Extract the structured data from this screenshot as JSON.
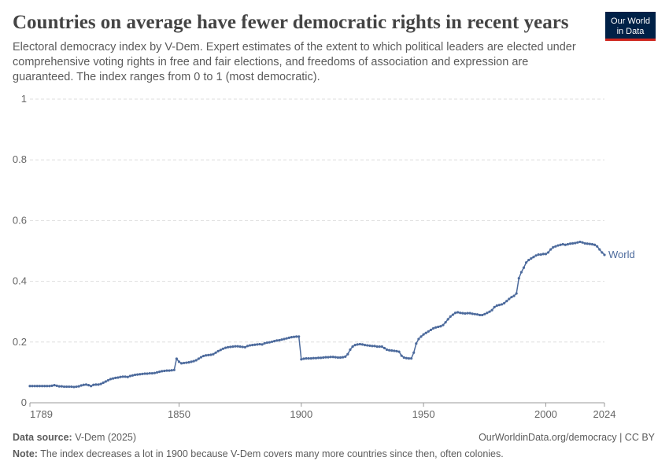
{
  "chart_data": {
    "type": "line",
    "title": "Countries on average have fewer democratic rights in recent years",
    "subtitle": [
      "Electoral democracy index by V-Dem. Expert estimates of the extent to which political leaders are elected under",
      "comprehensive voting rights in free and fair elections, and freedoms of association and expression are",
      "guaranteed. The index ranges from 0 to 1 (most democratic)."
    ],
    "logo": [
      "Our World",
      "in Data"
    ],
    "x": [
      1789,
      1790,
      1791,
      1792,
      1793,
      1794,
      1795,
      1796,
      1797,
      1798,
      1799,
      1800,
      1801,
      1802,
      1803,
      1804,
      1805,
      1806,
      1807,
      1808,
      1809,
      1810,
      1811,
      1812,
      1813,
      1814,
      1815,
      1816,
      1817,
      1818,
      1819,
      1820,
      1821,
      1822,
      1823,
      1824,
      1825,
      1826,
      1827,
      1828,
      1829,
      1830,
      1831,
      1832,
      1833,
      1834,
      1835,
      1836,
      1837,
      1838,
      1839,
      1840,
      1841,
      1842,
      1843,
      1844,
      1845,
      1846,
      1847,
      1848,
      1849,
      1850,
      1851,
      1852,
      1853,
      1854,
      1855,
      1856,
      1857,
      1858,
      1859,
      1860,
      1861,
      1862,
      1863,
      1864,
      1865,
      1866,
      1867,
      1868,
      1869,
      1870,
      1871,
      1872,
      1873,
      1874,
      1875,
      1876,
      1877,
      1878,
      1879,
      1880,
      1881,
      1882,
      1883,
      1884,
      1885,
      1886,
      1887,
      1888,
      1889,
      1890,
      1891,
      1892,
      1893,
      1894,
      1895,
      1896,
      1897,
      1898,
      1899,
      1900,
      1901,
      1902,
      1903,
      1904,
      1905,
      1906,
      1907,
      1908,
      1909,
      1910,
      1911,
      1912,
      1913,
      1914,
      1915,
      1916,
      1917,
      1918,
      1919,
      1920,
      1921,
      1922,
      1923,
      1924,
      1925,
      1926,
      1927,
      1928,
      1929,
      1930,
      1931,
      1932,
      1933,
      1934,
      1935,
      1936,
      1937,
      1938,
      1939,
      1940,
      1941,
      1942,
      1943,
      1944,
      1945,
      1946,
      1947,
      1948,
      1949,
      1950,
      1951,
      1952,
      1953,
      1954,
      1955,
      1956,
      1957,
      1958,
      1959,
      1960,
      1961,
      1962,
      1963,
      1964,
      1965,
      1966,
      1967,
      1968,
      1969,
      1970,
      1971,
      1972,
      1973,
      1974,
      1975,
      1976,
      1977,
      1978,
      1979,
      1980,
      1981,
      1982,
      1983,
      1984,
      1985,
      1986,
      1987,
      1988,
      1989,
      1990,
      1991,
      1992,
      1993,
      1994,
      1995,
      1996,
      1997,
      1998,
      1999,
      2000,
      2001,
      2002,
      2003,
      2004,
      2005,
      2006,
      2007,
      2008,
      2009,
      2010,
      2011,
      2012,
      2013,
      2014,
      2015,
      2016,
      2017,
      2018,
      2019,
      2020,
      2021,
      2022,
      2023,
      2024
    ],
    "series": [
      {
        "name": "World",
        "color": "#4c6a9c",
        "values": [
          0.055,
          0.055,
          0.055,
          0.055,
          0.055,
          0.055,
          0.055,
          0.055,
          0.055,
          0.056,
          0.058,
          0.056,
          0.054,
          0.054,
          0.053,
          0.053,
          0.053,
          0.053,
          0.052,
          0.053,
          0.054,
          0.057,
          0.059,
          0.06,
          0.058,
          0.055,
          0.059,
          0.06,
          0.06,
          0.062,
          0.066,
          0.07,
          0.074,
          0.078,
          0.08,
          0.082,
          0.083,
          0.085,
          0.086,
          0.086,
          0.085,
          0.088,
          0.09,
          0.092,
          0.093,
          0.094,
          0.095,
          0.096,
          0.096,
          0.097,
          0.097,
          0.098,
          0.1,
          0.102,
          0.104,
          0.105,
          0.106,
          0.106,
          0.107,
          0.108,
          0.145,
          0.135,
          0.13,
          0.131,
          0.132,
          0.133,
          0.135,
          0.137,
          0.14,
          0.145,
          0.15,
          0.154,
          0.156,
          0.157,
          0.158,
          0.16,
          0.165,
          0.17,
          0.174,
          0.178,
          0.181,
          0.183,
          0.184,
          0.185,
          0.186,
          0.186,
          0.185,
          0.184,
          0.183,
          0.187,
          0.189,
          0.19,
          0.191,
          0.192,
          0.193,
          0.192,
          0.196,
          0.198,
          0.199,
          0.201,
          0.203,
          0.205,
          0.206,
          0.208,
          0.21,
          0.212,
          0.214,
          0.216,
          0.217,
          0.218,
          0.218,
          0.143,
          0.145,
          0.146,
          0.146,
          0.146,
          0.147,
          0.147,
          0.148,
          0.148,
          0.149,
          0.15,
          0.15,
          0.151,
          0.151,
          0.15,
          0.149,
          0.149,
          0.15,
          0.152,
          0.16,
          0.175,
          0.185,
          0.19,
          0.192,
          0.193,
          0.192,
          0.19,
          0.189,
          0.188,
          0.187,
          0.187,
          0.185,
          0.185,
          0.185,
          0.18,
          0.175,
          0.173,
          0.172,
          0.171,
          0.17,
          0.168,
          0.155,
          0.149,
          0.147,
          0.146,
          0.146,
          0.165,
          0.195,
          0.21,
          0.218,
          0.225,
          0.23,
          0.235,
          0.24,
          0.245,
          0.248,
          0.25,
          0.252,
          0.256,
          0.265,
          0.275,
          0.284,
          0.29,
          0.296,
          0.298,
          0.296,
          0.295,
          0.294,
          0.295,
          0.295,
          0.293,
          0.292,
          0.291,
          0.289,
          0.289,
          0.292,
          0.296,
          0.3,
          0.305,
          0.315,
          0.32,
          0.322,
          0.324,
          0.328,
          0.335,
          0.342,
          0.348,
          0.352,
          0.36,
          0.41,
          0.43,
          0.445,
          0.462,
          0.47,
          0.475,
          0.48,
          0.485,
          0.488,
          0.488,
          0.49,
          0.49,
          0.495,
          0.505,
          0.512,
          0.515,
          0.518,
          0.52,
          0.522,
          0.52,
          0.522,
          0.524,
          0.525,
          0.526,
          0.528,
          0.53,
          0.528,
          0.525,
          0.524,
          0.523,
          0.522,
          0.52,
          0.515,
          0.505,
          0.495,
          0.487
        ]
      }
    ],
    "xlim": [
      1789,
      2024
    ],
    "xticks": [
      1789,
      1850,
      1900,
      1950,
      2000,
      2024
    ],
    "ylim": [
      0,
      1
    ],
    "yticks": [
      0,
      0.2,
      0.4,
      0.6,
      0.8,
      1
    ],
    "grid": true,
    "source_label": "Data source:",
    "source": "V-Dem (2025)",
    "url": "OurWorldinData.org/democracy | CC BY",
    "note_label": "Note:",
    "note": "The index decreases a lot in 1900 because V-Dem covers many more countries since then, often colonies."
  }
}
